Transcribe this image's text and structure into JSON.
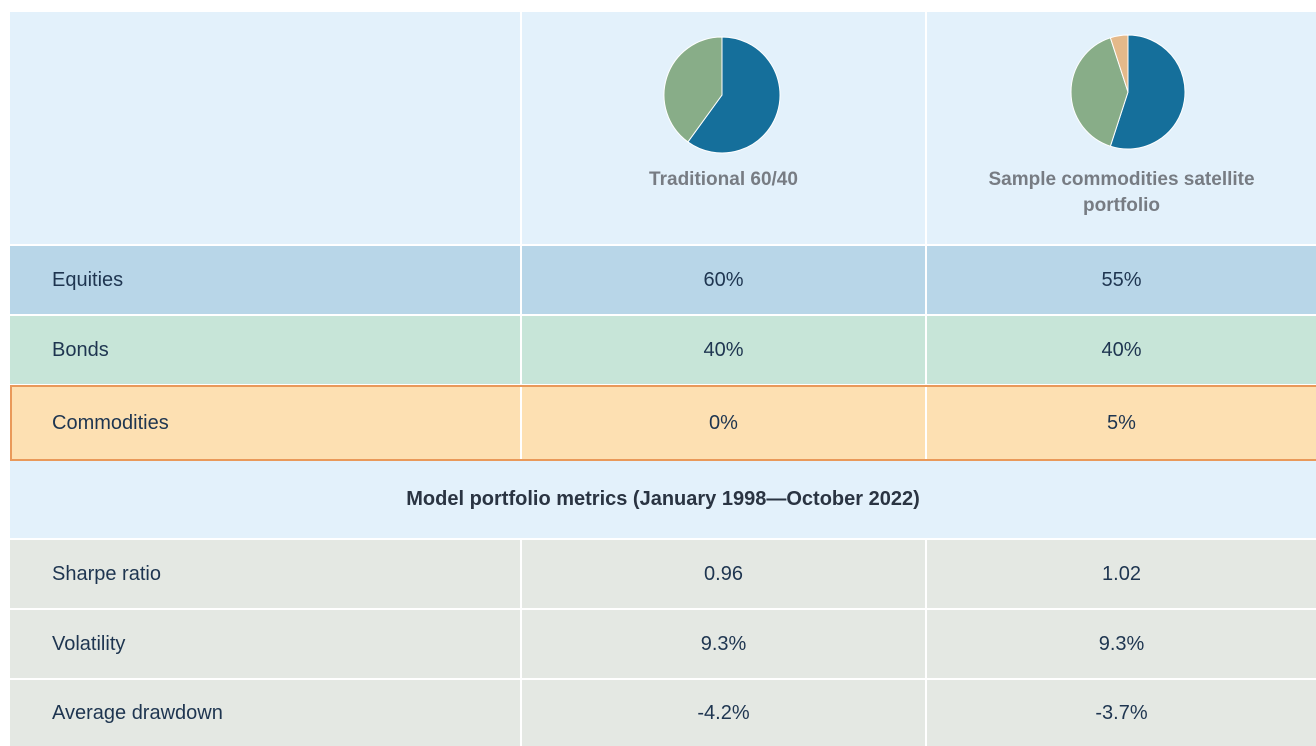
{
  "allocation": {
    "rows": [
      "Equities",
      "Bonds",
      "Commodities"
    ],
    "colors": [
      "#156f9b",
      "#88ad88",
      "#e4b98a"
    ],
    "portfolios": [
      {
        "name": "Traditional 60/40",
        "values": [
          60,
          40,
          0
        ],
        "value_labels": [
          "60%",
          "40%",
          "0%"
        ]
      },
      {
        "name": "Sample commodities satellite portfolio",
        "values": [
          55,
          40,
          5
        ],
        "value_labels": [
          "55%",
          "40%",
          "5%"
        ]
      }
    ]
  },
  "metrics": {
    "title": "Model portfolio metrics (January 1998—October 2022)",
    "rows": [
      [
        "Sharpe ratio",
        "0.96",
        "1.02"
      ],
      [
        "Volatility",
        "9.3%",
        "9.3%"
      ],
      [
        "Average drawdown",
        "-4.2%",
        "-3.7%"
      ]
    ]
  }
}
